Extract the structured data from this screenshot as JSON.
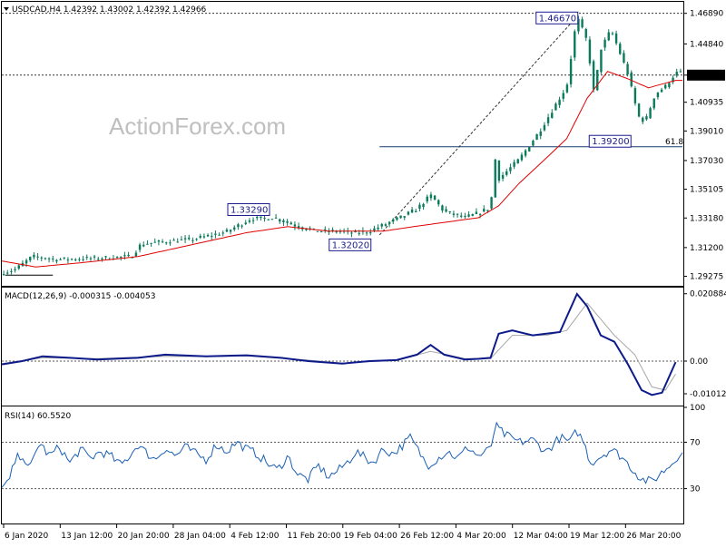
{
  "chart_data": [
    {
      "type": "candlestick",
      "title": "USDCAD,H4  1.42392 1.43002 1.42392 1.42966",
      "watermark": "ActionForex.com",
      "y_ticks": [
        "1.46890",
        "1.44840",
        "1.42750",
        "1.40935",
        "1.39010",
        "1.37030",
        "1.35105",
        "1.33180",
        "1.31200",
        "1.29275"
      ],
      "ylim": [
        1.287,
        1.476
      ],
      "current_price": 1.4275,
      "current_price_label": "1.42750",
      "annotations": [
        {
          "label": "1.46670",
          "value": 1.4667,
          "t": 0.817
        },
        {
          "label": "1.33290",
          "value": 1.3329,
          "t": 0.364
        },
        {
          "label": "1.32020",
          "value": 1.3202,
          "t": 0.513
        },
        {
          "label": "1.39200",
          "value": 1.392,
          "t": 0.907
        }
      ],
      "fib": {
        "label": "61.8",
        "value": 1.3795
      },
      "ma_color": "#e00000",
      "candle_color": "#0a7a5a",
      "price_path": [
        [
          0.0,
          1.295
        ],
        [
          0.02,
          1.2975
        ],
        [
          0.045,
          1.306
        ],
        [
          0.08,
          1.304
        ],
        [
          0.11,
          1.3045
        ],
        [
          0.15,
          1.305
        ],
        [
          0.19,
          1.306
        ],
        [
          0.205,
          1.3145
        ],
        [
          0.24,
          1.316
        ],
        [
          0.28,
          1.3175
        ],
        [
          0.33,
          1.3225
        ],
        [
          0.364,
          1.331
        ],
        [
          0.4,
          1.332
        ],
        [
          0.43,
          1.327
        ],
        [
          0.46,
          1.323
        ],
        [
          0.5,
          1.323
        ],
        [
          0.513,
          1.3215
        ],
        [
          0.54,
          1.323
        ],
        [
          0.56,
          1.327
        ],
        [
          0.59,
          1.333
        ],
        [
          0.61,
          1.338
        ],
        [
          0.63,
          1.347
        ],
        [
          0.65,
          1.336
        ],
        [
          0.68,
          1.332
        ],
        [
          0.7,
          1.335
        ],
        [
          0.718,
          1.339
        ],
        [
          0.725,
          1.371
        ],
        [
          0.73,
          1.358
        ],
        [
          0.76,
          1.371
        ],
        [
          0.79,
          1.39
        ],
        [
          0.81,
          1.405
        ],
        [
          0.83,
          1.42
        ],
        [
          0.845,
          1.4667
        ],
        [
          0.86,
          1.45
        ],
        [
          0.87,
          1.415
        ],
        [
          0.88,
          1.445
        ],
        [
          0.895,
          1.458
        ],
        [
          0.905,
          1.446
        ],
        [
          0.92,
          1.428
        ],
        [
          0.935,
          1.4
        ],
        [
          0.945,
          1.396
        ],
        [
          0.96,
          1.415
        ],
        [
          0.975,
          1.42
        ],
        [
          0.99,
          1.429
        ]
      ],
      "ma_path": [
        [
          0.0,
          1.303
        ],
        [
          0.05,
          1.299
        ],
        [
          0.12,
          1.302
        ],
        [
          0.2,
          1.306
        ],
        [
          0.28,
          1.314
        ],
        [
          0.36,
          1.322
        ],
        [
          0.42,
          1.326
        ],
        [
          0.48,
          1.323
        ],
        [
          0.56,
          1.323
        ],
        [
          0.62,
          1.327
        ],
        [
          0.7,
          1.332
        ],
        [
          0.73,
          1.34
        ],
        [
          0.76,
          1.355
        ],
        [
          0.8,
          1.372
        ],
        [
          0.83,
          1.385
        ],
        [
          0.86,
          1.412
        ],
        [
          0.89,
          1.43
        ],
        [
          0.92,
          1.425
        ],
        [
          0.95,
          1.419
        ],
        [
          0.99,
          1.424
        ]
      ]
    },
    {
      "type": "line",
      "title": "MACD(12,26,9) -0.000315 -0.004053",
      "y_ticks": [
        "0.020884",
        "0.00",
        "-0.010121"
      ],
      "ylim": [
        -0.0135,
        0.0225
      ],
      "macd_color": "#0c1a8a",
      "signal_color": "#a8a8a8",
      "macd": [
        [
          0.0,
          -0.001
        ],
        [
          0.03,
          0.0
        ],
        [
          0.06,
          0.0015
        ],
        [
          0.1,
          0.001
        ],
        [
          0.14,
          0.0005
        ],
        [
          0.2,
          0.001
        ],
        [
          0.24,
          0.002
        ],
        [
          0.3,
          0.0015
        ],
        [
          0.36,
          0.0018
        ],
        [
          0.41,
          0.001
        ],
        [
          0.45,
          0.0
        ],
        [
          0.5,
          -0.0008
        ],
        [
          0.54,
          0.0
        ],
        [
          0.58,
          0.0003
        ],
        [
          0.61,
          0.002
        ],
        [
          0.63,
          0.005
        ],
        [
          0.65,
          0.002
        ],
        [
          0.68,
          0.0005
        ],
        [
          0.7,
          0.0007
        ],
        [
          0.718,
          0.001
        ],
        [
          0.73,
          0.0085
        ],
        [
          0.75,
          0.0095
        ],
        [
          0.78,
          0.008
        ],
        [
          0.8,
          0.0085
        ],
        [
          0.82,
          0.009
        ],
        [
          0.845,
          0.0208
        ],
        [
          0.86,
          0.017
        ],
        [
          0.88,
          0.008
        ],
        [
          0.9,
          0.006
        ],
        [
          0.92,
          -0.001
        ],
        [
          0.94,
          -0.009
        ],
        [
          0.955,
          -0.0105
        ],
        [
          0.97,
          -0.0098
        ],
        [
          0.99,
          -0.0003
        ]
      ],
      "signal": [
        [
          0.0,
          -0.0008
        ],
        [
          0.06,
          0.001
        ],
        [
          0.14,
          0.0008
        ],
        [
          0.24,
          0.0015
        ],
        [
          0.3,
          0.0014
        ],
        [
          0.36,
          0.0016
        ],
        [
          0.45,
          0.0003
        ],
        [
          0.5,
          -0.0006
        ],
        [
          0.58,
          0.0002
        ],
        [
          0.63,
          0.003
        ],
        [
          0.68,
          0.0008
        ],
        [
          0.718,
          0.0008
        ],
        [
          0.75,
          0.008
        ],
        [
          0.8,
          0.008
        ],
        [
          0.83,
          0.0095
        ],
        [
          0.86,
          0.018
        ],
        [
          0.88,
          0.013
        ],
        [
          0.9,
          0.008
        ],
        [
          0.93,
          0.002
        ],
        [
          0.955,
          -0.008
        ],
        [
          0.975,
          -0.009
        ],
        [
          0.99,
          -0.004
        ]
      ]
    },
    {
      "type": "line",
      "title": "RSI(14) 60.5520",
      "y_ticks": [
        "100",
        "70",
        "30"
      ],
      "ylim": [
        0,
        100
      ],
      "levels": [
        70,
        30
      ],
      "rsi_color": "#1a5fb4",
      "rsi": [
        [
          0.0,
          30
        ],
        [
          0.01,
          35
        ],
        [
          0.02,
          55
        ],
        [
          0.03,
          60
        ],
        [
          0.04,
          45
        ],
        [
          0.055,
          70
        ],
        [
          0.07,
          58
        ],
        [
          0.085,
          66
        ],
        [
          0.1,
          52
        ],
        [
          0.115,
          64
        ],
        [
          0.13,
          56
        ],
        [
          0.145,
          62
        ],
        [
          0.16,
          58
        ],
        [
          0.175,
          50
        ],
        [
          0.19,
          60
        ],
        [
          0.2,
          68
        ],
        [
          0.21,
          62
        ],
        [
          0.225,
          55
        ],
        [
          0.24,
          65
        ],
        [
          0.255,
          58
        ],
        [
          0.27,
          66
        ],
        [
          0.285,
          60
        ],
        [
          0.3,
          55
        ],
        [
          0.315,
          68
        ],
        [
          0.33,
          62
        ],
        [
          0.345,
          70
        ],
        [
          0.36,
          64
        ],
        [
          0.375,
          60
        ],
        [
          0.39,
          52
        ],
        [
          0.405,
          46
        ],
        [
          0.42,
          58
        ],
        [
          0.435,
          42
        ],
        [
          0.45,
          38
        ],
        [
          0.465,
          50
        ],
        [
          0.48,
          40
        ],
        [
          0.495,
          46
        ],
        [
          0.51,
          54
        ],
        [
          0.52,
          62
        ],
        [
          0.53,
          58
        ],
        [
          0.545,
          52
        ],
        [
          0.56,
          64
        ],
        [
          0.575,
          60
        ],
        [
          0.59,
          68
        ],
        [
          0.6,
          74
        ],
        [
          0.615,
          60
        ],
        [
          0.625,
          50
        ],
        [
          0.64,
          56
        ],
        [
          0.655,
          62
        ],
        [
          0.67,
          56
        ],
        [
          0.685,
          66
        ],
        [
          0.7,
          58
        ],
        [
          0.718,
          64
        ],
        [
          0.725,
          84
        ],
        [
          0.74,
          76
        ],
        [
          0.76,
          70
        ],
        [
          0.78,
          72
        ],
        [
          0.8,
          62
        ],
        [
          0.82,
          74
        ],
        [
          0.835,
          70
        ],
        [
          0.845,
          80
        ],
        [
          0.855,
          70
        ],
        [
          0.865,
          52
        ],
        [
          0.88,
          58
        ],
        [
          0.895,
          64
        ],
        [
          0.91,
          58
        ],
        [
          0.925,
          48
        ],
        [
          0.94,
          38
        ],
        [
          0.955,
          36
        ],
        [
          0.97,
          44
        ],
        [
          0.985,
          52
        ],
        [
          0.995,
          60
        ]
      ]
    }
  ],
  "time_axis": {
    "labels": [
      "6 Jan 2020",
      "13 Jan 12:00",
      "20 Jan 20:00",
      "28 Jan 04:00",
      "4 Feb 12:00",
      "11 Feb 20:00",
      "19 Feb 04:00",
      "26 Feb 12:00",
      "4 Mar 20:00",
      "12 Mar 04:00",
      "19 Mar 12:00",
      "26 Mar 20:00"
    ]
  }
}
